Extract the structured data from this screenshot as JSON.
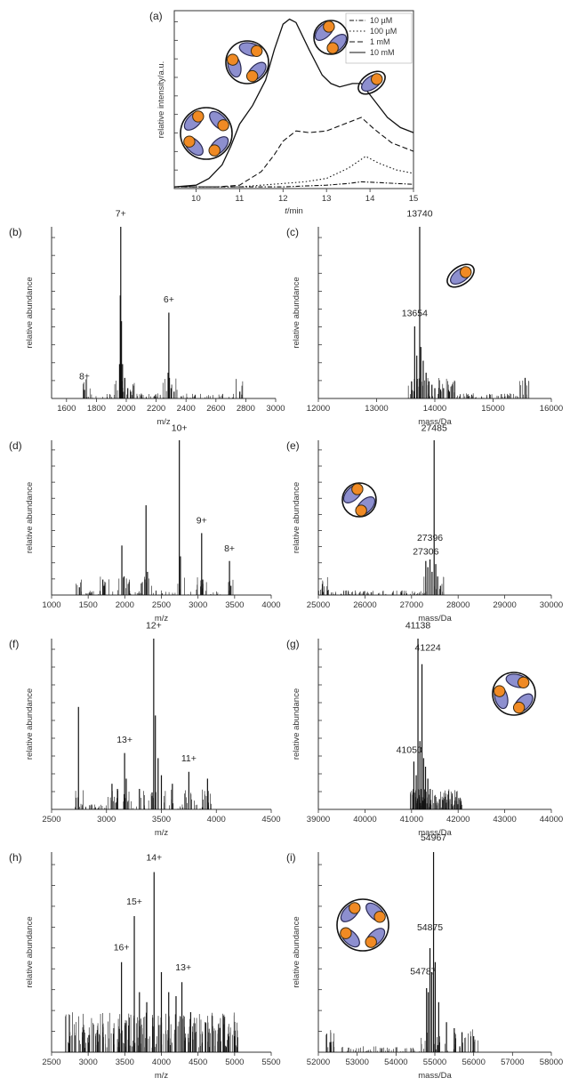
{
  "colors": {
    "ink": "#111111",
    "axis": "#333333",
    "subunit_body": "#8d8fcf",
    "subunit_head": "#f08a24"
  },
  "chart_data": [
    {
      "id": "a",
      "panel_label": "(a)",
      "type": "line",
      "xlabel_var": "t",
      "xlabel_unit": "/min",
      "ylabel": "relative intensity/a.u.",
      "xlim": [
        9.5,
        15
      ],
      "ylim": [
        0,
        1.05
      ],
      "y_ticks_labeled": false,
      "x_ticks": [
        10,
        11,
        12,
        13,
        14,
        15
      ],
      "legend": {
        "placement": "top-right"
      },
      "series": [
        {
          "name": "10 µM",
          "style": "dashdot",
          "x": [
            9.5,
            10.5,
            11.5,
            12,
            12.5,
            13,
            13.5,
            13.8,
            14.2,
            14.6,
            15
          ],
          "y": [
            0.01,
            0.01,
            0.01,
            0.01,
            0.015,
            0.02,
            0.03,
            0.04,
            0.035,
            0.03,
            0.025
          ]
        },
        {
          "name": "100 µM",
          "style": "dotted",
          "x": [
            9.5,
            10.5,
            11,
            11.5,
            12,
            12.5,
            13,
            13.5,
            13.9,
            14.2,
            14.6,
            15
          ],
          "y": [
            0.01,
            0.01,
            0.01,
            0.02,
            0.03,
            0.04,
            0.06,
            0.12,
            0.19,
            0.15,
            0.11,
            0.09
          ]
        },
        {
          "name": "1 mM",
          "style": "dashed",
          "x": [
            9.5,
            10.5,
            11,
            11.5,
            11.8,
            12,
            12.3,
            12.6,
            13,
            13.4,
            13.8,
            14.1,
            14.5,
            15
          ],
          "y": [
            0.01,
            0.01,
            0.02,
            0.1,
            0.2,
            0.28,
            0.34,
            0.33,
            0.34,
            0.38,
            0.42,
            0.35,
            0.27,
            0.22
          ]
        },
        {
          "name": "10 mM",
          "style": "solid",
          "x": [
            9.5,
            10,
            10.3,
            10.6,
            10.8,
            11,
            11.3,
            11.6,
            11.8,
            12,
            12.15,
            12.3,
            12.6,
            12.9,
            13.1,
            13.3,
            13.6,
            13.8,
            14.1,
            14.4,
            14.7,
            15
          ],
          "y": [
            0.01,
            0.02,
            0.06,
            0.14,
            0.25,
            0.38,
            0.49,
            0.64,
            0.82,
            0.97,
            1.0,
            0.98,
            0.82,
            0.67,
            0.62,
            0.6,
            0.62,
            0.62,
            0.52,
            0.42,
            0.36,
            0.33
          ]
        }
      ]
    },
    {
      "id": "b",
      "panel_label": "(b)",
      "type": "spectrum",
      "xlabel": "m/z",
      "ylabel": "relative abundance",
      "xlim": [
        1500,
        3000
      ],
      "x_ticks": [
        1600,
        1800,
        2000,
        2200,
        2400,
        2600,
        2800,
        3000
      ],
      "ylim": [
        0,
        1
      ],
      "y_ticks_labeled": false,
      "peaks": [
        [
          1720,
          0.05
        ],
        [
          1955,
          0.2
        ],
        [
          1960,
          0.6
        ],
        [
          1963,
          1.0
        ],
        [
          1968,
          0.45
        ],
        [
          1975,
          0.2
        ],
        [
          1990,
          0.12
        ],
        [
          2010,
          0.06
        ],
        [
          2030,
          0.04
        ],
        [
          2280,
          0.15
        ],
        [
          2285,
          0.5
        ],
        [
          2289,
          0.12
        ],
        [
          2300,
          0.06
        ],
        [
          2320,
          0.04
        ],
        [
          2760,
          0.04
        ]
      ],
      "annotations": [
        {
          "text": "8+",
          "x": 1720,
          "y": 0.1
        },
        {
          "text": "7+",
          "x": 1963,
          "y": 1.05
        },
        {
          "text": "6+",
          "x": 2285,
          "y": 0.55
        }
      ]
    },
    {
      "id": "c",
      "panel_label": "(c)",
      "type": "spectrum",
      "xlabel": "mass/Da",
      "ylabel": "relative abundance",
      "xlim": [
        12000,
        16000
      ],
      "x_ticks": [
        12000,
        13000,
        14000,
        15000,
        16000
      ],
      "ylim": [
        0,
        1
      ],
      "y_ticks_labeled": false,
      "peaks": [
        [
          13600,
          0.1
        ],
        [
          13654,
          0.42
        ],
        [
          13690,
          0.25
        ],
        [
          13740,
          1.0
        ],
        [
          13760,
          0.3
        ],
        [
          13800,
          0.22
        ],
        [
          13850,
          0.15
        ],
        [
          13900,
          0.1
        ],
        [
          13950,
          0.08
        ],
        [
          14000,
          0.06
        ],
        [
          14100,
          0.05
        ],
        [
          14150,
          0.06
        ],
        [
          14250,
          0.04
        ],
        [
          15550,
          0.12
        ]
      ],
      "annotations": [
        {
          "text": "13740",
          "x": 13740,
          "y": 1.05
        },
        {
          "text": "13654",
          "x": 13654,
          "y": 0.47
        }
      ],
      "icon": "monomer"
    },
    {
      "id": "d",
      "panel_label": "(d)",
      "type": "spectrum",
      "xlabel": "m/z",
      "ylabel": "relative abundance",
      "xlim": [
        1000,
        4000
      ],
      "x_ticks": [
        1000,
        1500,
        2000,
        2500,
        3000,
        3500,
        4000
      ],
      "ylim": [
        0,
        1
      ],
      "y_ticks_labeled": false,
      "peaks": [
        [
          1380,
          0.05
        ],
        [
          1700,
          0.1
        ],
        [
          1960,
          0.32
        ],
        [
          2290,
          0.58
        ],
        [
          2745,
          1.0
        ],
        [
          3050,
          0.4
        ],
        [
          3430,
          0.22
        ],
        [
          1720,
          0.06
        ],
        [
          1990,
          0.12
        ],
        [
          2310,
          0.15
        ],
        [
          2760,
          0.25
        ],
        [
          3065,
          0.1
        ],
        [
          3450,
          0.06
        ]
      ],
      "annotations": [
        {
          "text": "10+",
          "x": 2745,
          "y": 1.05
        },
        {
          "text": "9+",
          "x": 3050,
          "y": 0.45
        },
        {
          "text": "8+",
          "x": 3430,
          "y": 0.27
        }
      ]
    },
    {
      "id": "e",
      "panel_label": "(e)",
      "type": "spectrum",
      "xlabel": "mass/Da",
      "ylabel": "relative abundance",
      "xlim": [
        25000,
        30000
      ],
      "x_ticks": [
        25000,
        26000,
        27000,
        28000,
        29000,
        30000
      ],
      "ylim": [
        0,
        1
      ],
      "y_ticks_labeled": false,
      "peaks": [
        [
          27306,
          0.22
        ],
        [
          27350,
          0.18
        ],
        [
          27396,
          0.23
        ],
        [
          27440,
          0.15
        ],
        [
          27485,
          1.0
        ],
        [
          27520,
          0.2
        ],
        [
          27560,
          0.12
        ],
        [
          27620,
          0.06
        ],
        [
          25100,
          0.02
        ]
      ],
      "annotations": [
        {
          "text": "27485",
          "x": 27485,
          "y": 1.05
        },
        {
          "text": "27396",
          "x": 27396,
          "y": 0.34
        },
        {
          "text": "27306",
          "x": 27306,
          "y": 0.25
        }
      ],
      "icon": "dimer"
    },
    {
      "id": "f",
      "panel_label": "(f)",
      "type": "spectrum",
      "xlabel": "m/z",
      "ylabel": "relative abundance",
      "xlim": [
        2500,
        4500
      ],
      "x_ticks": [
        2500,
        3000,
        3500,
        4000,
        4500
      ],
      "ylim": [
        0,
        1
      ],
      "y_ticks_labeled": false,
      "peaks": [
        [
          2745,
          0.6
        ],
        [
          3050,
          0.15
        ],
        [
          3165,
          0.33
        ],
        [
          3300,
          0.12
        ],
        [
          3430,
          1.0
        ],
        [
          3445,
          0.55
        ],
        [
          3470,
          0.3
        ],
        [
          3500,
          0.2
        ],
        [
          3600,
          0.15
        ],
        [
          3750,
          0.22
        ],
        [
          3920,
          0.18
        ],
        [
          3180,
          0.18
        ],
        [
          3100,
          0.12
        ]
      ],
      "annotations": [
        {
          "text": "13+",
          "x": 3165,
          "y": 0.38
        },
        {
          "text": "12+",
          "x": 3430,
          "y": 1.05
        },
        {
          "text": "11+",
          "x": 3750,
          "y": 0.27
        }
      ]
    },
    {
      "id": "g",
      "panel_label": "(g)",
      "type": "spectrum",
      "xlabel": "mass/Da",
      "ylabel": "relative abundance",
      "xlim": [
        39000,
        44000
      ],
      "x_ticks": [
        39000,
        40000,
        41000,
        42000,
        43000,
        44000
      ],
      "ylim": [
        0,
        1
      ],
      "y_ticks_labeled": false,
      "peaks": [
        [
          41050,
          0.28
        ],
        [
          41100,
          0.2
        ],
        [
          41138,
          1.0
        ],
        [
          41180,
          0.4
        ],
        [
          41224,
          0.85
        ],
        [
          41260,
          0.3
        ],
        [
          41300,
          0.25
        ],
        [
          41350,
          0.18
        ],
        [
          41400,
          0.12
        ],
        [
          41500,
          0.08
        ],
        [
          41600,
          0.06
        ],
        [
          41750,
          0.04
        ],
        [
          42000,
          0.03
        ]
      ],
      "annotations": [
        {
          "text": "41138",
          "x": 41138,
          "y": 1.05
        },
        {
          "text": "41224",
          "x": 41350,
          "y": 0.92
        },
        {
          "text": "41050",
          "x": 40950,
          "y": 0.32
        }
      ],
      "icon": "trimer"
    },
    {
      "id": "h",
      "panel_label": "(h)",
      "type": "spectrum",
      "xlabel": "m/z",
      "ylabel": "relative abundance",
      "xlim": [
        2500,
        5500
      ],
      "x_ticks": [
        2500,
        3000,
        3500,
        4000,
        4500,
        5000,
        5500
      ],
      "ylim": [
        0,
        1
      ],
      "y_ticks_labeled": false,
      "peaks": [
        [
          3455,
          0.45
        ],
        [
          3630,
          0.68
        ],
        [
          3900,
          0.9
        ],
        [
          4280,
          0.35
        ],
        [
          3700,
          0.3
        ],
        [
          3800,
          0.25
        ],
        [
          4000,
          0.4
        ],
        [
          4100,
          0.3
        ],
        [
          4200,
          0.28
        ],
        [
          4400,
          0.2
        ],
        [
          4600,
          0.15
        ],
        [
          3350,
          0.12
        ],
        [
          3200,
          0.1
        ],
        [
          2750,
          0.08
        ],
        [
          4800,
          0.12
        ],
        [
          5000,
          0.08
        ]
      ],
      "annotations": [
        {
          "text": "16+",
          "x": 3455,
          "y": 0.5
        },
        {
          "text": "15+",
          "x": 3630,
          "y": 0.73
        },
        {
          "text": "14+",
          "x": 3900,
          "y": 0.95
        },
        {
          "text": "13+",
          "x": 4300,
          "y": 0.4
        }
      ]
    },
    {
      "id": "i",
      "panel_label": "(i)",
      "type": "spectrum",
      "xlabel": "mass/Da",
      "ylabel": "relative abundance",
      "xlim": [
        52000,
        58000
      ],
      "x_ticks": [
        52000,
        53000,
        54000,
        55000,
        56000,
        57000,
        58000
      ],
      "ylim": [
        0,
        1
      ],
      "y_ticks_labeled": false,
      "peaks": [
        [
          54787,
          0.32
        ],
        [
          54830,
          0.3
        ],
        [
          54875,
          0.52
        ],
        [
          54920,
          0.4
        ],
        [
          54967,
          1.0
        ],
        [
          55010,
          0.45
        ],
        [
          55100,
          0.25
        ],
        [
          55300,
          0.15
        ],
        [
          55500,
          0.12
        ],
        [
          55700,
          0.1
        ],
        [
          56000,
          0.08
        ],
        [
          52300,
          0.05
        ]
      ],
      "annotations": [
        {
          "text": "54967",
          "x": 54967,
          "y": 1.05
        },
        {
          "text": "54875",
          "x": 54875,
          "y": 0.6
        },
        {
          "text": "54787",
          "x": 54700,
          "y": 0.38
        }
      ],
      "icon": "tetramer"
    }
  ]
}
